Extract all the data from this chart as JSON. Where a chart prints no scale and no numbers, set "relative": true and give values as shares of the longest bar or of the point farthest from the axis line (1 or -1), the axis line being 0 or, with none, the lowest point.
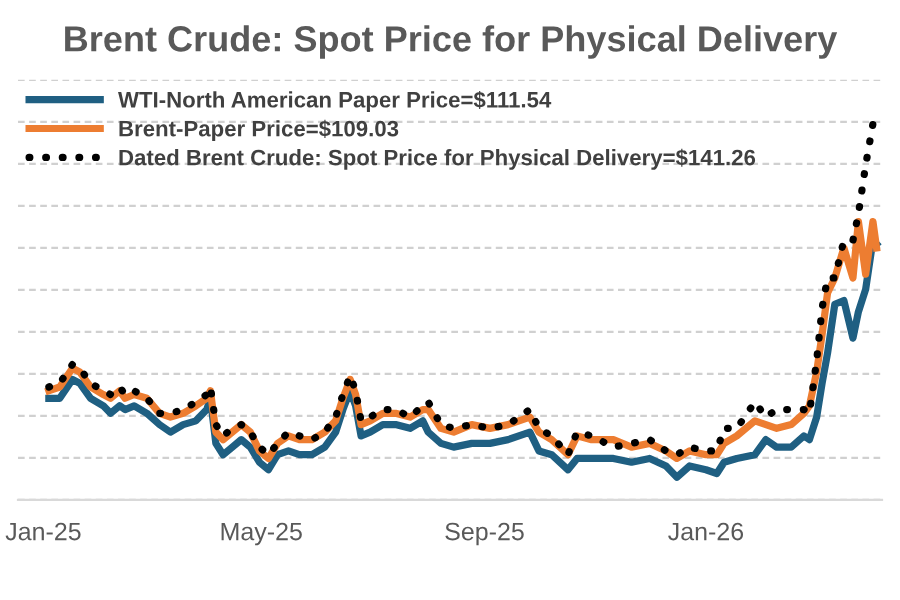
{
  "chart_data": {
    "type": "line",
    "title": "Brent Crude: Spot Price for Physical Delivery",
    "relative": true,
    "grid": "y",
    "legend": "top left",
    "x": [
      "2025-01-04",
      "2025-01-10",
      "2025-01-17",
      "2025-01-21",
      "2025-01-27",
      "2025-02-03",
      "2025-02-07",
      "2025-02-12",
      "2025-02-15",
      "2025-02-20",
      "2025-02-27",
      "2025-03-06",
      "2025-03-12",
      "2025-03-19",
      "2025-03-26",
      "2025-04-01",
      "2025-04-03",
      "2025-04-06",
      "2025-04-10",
      "2025-04-15",
      "2025-04-20",
      "2025-04-25",
      "2025-04-30",
      "2025-05-05",
      "2025-05-10",
      "2025-05-16",
      "2025-05-22",
      "2025-05-29",
      "2025-06-05",
      "2025-06-11",
      "2025-06-15",
      "2025-06-19",
      "2025-06-22",
      "2025-06-25",
      "2025-06-30",
      "2025-07-07",
      "2025-07-14",
      "2025-07-22",
      "2025-07-29",
      "2025-08-01",
      "2025-08-08",
      "2025-08-15",
      "2025-08-25",
      "2025-09-04",
      "2025-09-14",
      "2025-09-26",
      "2025-10-01",
      "2025-10-08",
      "2025-10-17",
      "2025-10-22",
      "2025-10-30",
      "2025-11-11",
      "2025-11-21",
      "2025-12-01",
      "2025-12-10",
      "2025-12-16",
      "2025-12-23",
      "2026-01-01",
      "2026-01-07",
      "2026-01-11",
      "2026-01-18",
      "2026-01-28",
      "2026-02-03",
      "2026-02-09",
      "2026-02-17",
      "2026-02-24",
      "2026-02-27",
      "2026-03-03",
      "2026-03-06",
      "2026-03-09",
      "2026-03-13",
      "2026-03-18",
      "2026-03-23",
      "2026-03-26",
      "2026-03-30",
      "2026-04-03",
      "2026-04-05"
    ],
    "xlim": [
      "2024-12-18",
      "2026-04-08"
    ],
    "xticks": [
      {
        "value": "2025-01-01",
        "label": "Jan-25"
      },
      {
        "value": "2025-05-01",
        "label": "May-25"
      },
      {
        "value": "2025-09-01",
        "label": "Sep-25"
      },
      {
        "value": "2026-01-01",
        "label": "Jan-26"
      }
    ],
    "series": [
      {
        "name": "WTI-North American Paper Price=$111.54",
        "color": "#1f5f82",
        "line_style": "solid",
        "values": [
          0.27,
          0.27,
          0.32,
          0.31,
          0.27,
          0.25,
          0.23,
          0.25,
          0.24,
          0.25,
          0.23,
          0.2,
          0.18,
          0.2,
          0.21,
          0.24,
          0.27,
          0.15,
          0.12,
          0.14,
          0.16,
          0.14,
          0.1,
          0.08,
          0.12,
          0.13,
          0.12,
          0.12,
          0.14,
          0.18,
          0.24,
          0.29,
          0.25,
          0.17,
          0.18,
          0.2,
          0.2,
          0.19,
          0.21,
          0.18,
          0.15,
          0.14,
          0.15,
          0.15,
          0.16,
          0.18,
          0.13,
          0.12,
          0.08,
          0.11,
          0.11,
          0.11,
          0.1,
          0.11,
          0.09,
          0.06,
          0.09,
          0.08,
          0.07,
          0.1,
          0.11,
          0.12,
          0.16,
          0.14,
          0.14,
          0.17,
          0.16,
          0.22,
          0.31,
          0.39,
          0.52,
          0.53,
          0.43,
          0.5,
          0.56,
          0.69,
          0.68
        ]
      },
      {
        "name": "Brent-Paper Price=$109.03",
        "color": "#ed7d31",
        "line_style": "solid",
        "values": [
          0.29,
          0.3,
          0.35,
          0.34,
          0.3,
          0.28,
          0.27,
          0.29,
          0.27,
          0.28,
          0.27,
          0.23,
          0.22,
          0.23,
          0.25,
          0.27,
          0.29,
          0.18,
          0.16,
          0.18,
          0.2,
          0.18,
          0.13,
          0.11,
          0.15,
          0.17,
          0.16,
          0.16,
          0.18,
          0.21,
          0.27,
          0.32,
          0.28,
          0.2,
          0.21,
          0.23,
          0.23,
          0.22,
          0.24,
          0.24,
          0.19,
          0.18,
          0.2,
          0.19,
          0.2,
          0.22,
          0.18,
          0.16,
          0.12,
          0.17,
          0.16,
          0.16,
          0.14,
          0.15,
          0.13,
          0.11,
          0.13,
          0.12,
          0.12,
          0.15,
          0.17,
          0.21,
          0.2,
          0.19,
          0.2,
          0.23,
          0.25,
          0.34,
          0.44,
          0.55,
          0.59,
          0.67,
          0.59,
          0.74,
          0.6,
          0.74,
          0.67
        ]
      },
      {
        "name": "Dated Brent Crude: Spot Price for Physical Delivery=$141.26",
        "color": "#000000",
        "line_style": "dotted",
        "values": [
          0.3,
          0.31,
          0.36,
          0.35,
          0.31,
          0.29,
          0.28,
          0.3,
          0.28,
          0.29,
          0.27,
          0.23,
          0.23,
          0.24,
          0.26,
          0.28,
          0.3,
          0.2,
          0.17,
          0.19,
          0.2,
          0.18,
          0.14,
          0.12,
          0.15,
          0.18,
          0.17,
          0.16,
          0.18,
          0.22,
          0.28,
          0.33,
          0.29,
          0.21,
          0.22,
          0.24,
          0.24,
          0.22,
          0.25,
          0.26,
          0.2,
          0.19,
          0.2,
          0.19,
          0.2,
          0.24,
          0.19,
          0.17,
          0.12,
          0.18,
          0.17,
          0.14,
          0.15,
          0.16,
          0.13,
          0.12,
          0.14,
          0.13,
          0.13,
          0.19,
          0.19,
          0.26,
          0.22,
          0.24,
          0.24,
          0.24,
          0.23,
          0.37,
          0.51,
          0.59,
          0.59,
          0.69,
          0.69,
          0.76,
          0.89,
          1.0,
          null
        ]
      }
    ]
  }
}
